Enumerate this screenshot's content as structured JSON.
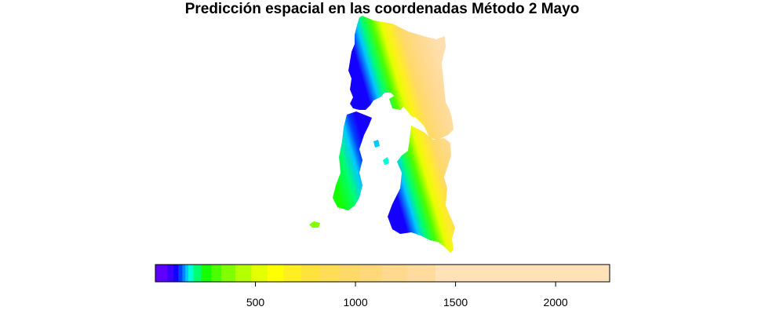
{
  "chart_data": {
    "type": "heatmap",
    "title": "Predicción espacial en las coordenadas Método 2 Mayo",
    "subtitle": "",
    "xlabel": "",
    "ylabel": "",
    "grid": false,
    "legend": "bottom",
    "colorbar": {
      "range": [
        0,
        2270
      ],
      "ticks": [
        500,
        1000,
        1500,
        2000
      ],
      "bins": [
        {
          "from": 0,
          "to": 60,
          "color": "#5e00ff"
        },
        {
          "from": 60,
          "to": 90,
          "color": "#3a00ff"
        },
        {
          "from": 90,
          "to": 115,
          "color": "#1400ff"
        },
        {
          "from": 115,
          "to": 135,
          "color": "#0041ff"
        },
        {
          "from": 135,
          "to": 150,
          "color": "#0088ff"
        },
        {
          "from": 150,
          "to": 165,
          "color": "#00c8ff"
        },
        {
          "from": 165,
          "to": 190,
          "color": "#00ffd6"
        },
        {
          "from": 190,
          "to": 230,
          "color": "#00ff6e"
        },
        {
          "from": 230,
          "to": 280,
          "color": "#15ff00"
        },
        {
          "from": 280,
          "to": 330,
          "color": "#4cff00"
        },
        {
          "from": 330,
          "to": 400,
          "color": "#81ff00"
        },
        {
          "from": 400,
          "to": 480,
          "color": "#b4ff00"
        },
        {
          "from": 480,
          "to": 560,
          "color": "#e4ff00"
        },
        {
          "from": 560,
          "to": 640,
          "color": "#ffff00"
        },
        {
          "from": 640,
          "to": 730,
          "color": "#ffee22"
        },
        {
          "from": 730,
          "to": 820,
          "color": "#ffe33c"
        },
        {
          "from": 820,
          "to": 920,
          "color": "#ffdd55"
        },
        {
          "from": 920,
          "to": 1020,
          "color": "#ffd968"
        },
        {
          "from": 1020,
          "to": 1130,
          "color": "#ffd87a"
        },
        {
          "from": 1130,
          "to": 1260,
          "color": "#ffd98d"
        },
        {
          "from": 1260,
          "to": 1400,
          "color": "#ffdc9e"
        },
        {
          "from": 1400,
          "to": 2270,
          "color": "#ffe2b8"
        }
      ]
    }
  }
}
